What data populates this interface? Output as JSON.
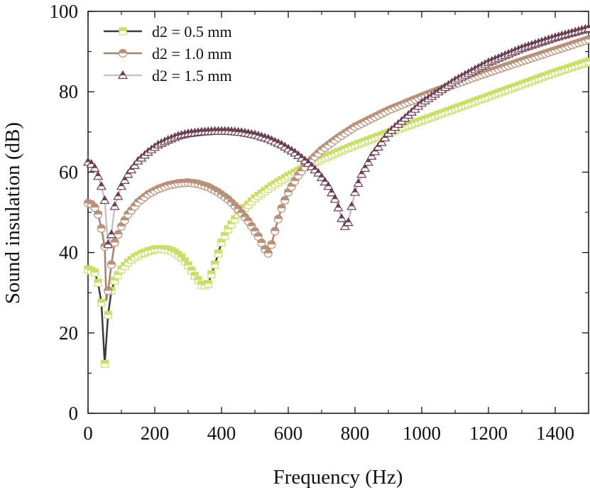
{
  "chart_data": {
    "type": "line",
    "title": "",
    "xlabel": "Frequency (Hz)",
    "ylabel": "Sound insulation (dB)",
    "xlim": [
      0,
      1500
    ],
    "ylim": [
      0,
      100
    ],
    "xticks": [
      "0",
      "200",
      "400",
      "600",
      "800",
      "1000",
      "1200",
      "1400"
    ],
    "yticks": [
      "0",
      "20",
      "40",
      "60",
      "80",
      "100"
    ],
    "grid": false,
    "legend_position": "top-left",
    "series": [
      {
        "name": "d2 = 0.5 mm",
        "line_color": "#3d3a3e",
        "marker": "square",
        "marker_color": "#c9df6a",
        "points": [
          [
            0,
            35.8
          ],
          [
            10,
            35.5
          ],
          [
            20,
            35.0
          ],
          [
            30,
            32.5
          ],
          [
            40,
            27.5
          ],
          [
            50,
            12.3
          ],
          [
            60,
            24.5
          ],
          [
            70,
            30.5
          ],
          [
            80,
            33.0
          ],
          [
            100,
            35.8
          ],
          [
            120,
            37.5
          ],
          [
            140,
            38.8
          ],
          [
            160,
            39.7
          ],
          [
            180,
            40.3
          ],
          [
            200,
            40.8
          ],
          [
            220,
            40.9
          ],
          [
            240,
            40.7
          ],
          [
            260,
            40.0
          ],
          [
            280,
            38.8
          ],
          [
            300,
            36.8
          ],
          [
            320,
            34.2
          ],
          [
            340,
            32.0
          ],
          [
            350,
            31.8
          ],
          [
            360,
            32.2
          ],
          [
            380,
            37.0
          ],
          [
            400,
            42.5
          ],
          [
            420,
            45.8
          ],
          [
            450,
            49.5
          ],
          [
            500,
            53.5
          ],
          [
            550,
            56.5
          ],
          [
            600,
            59.0
          ],
          [
            650,
            61.2
          ],
          [
            700,
            63.2
          ],
          [
            750,
            65.0
          ],
          [
            800,
            66.7
          ],
          [
            900,
            69.8
          ],
          [
            1000,
            72.8
          ],
          [
            1100,
            75.8
          ],
          [
            1200,
            78.8
          ],
          [
            1300,
            81.8
          ],
          [
            1400,
            84.8
          ],
          [
            1500,
            87.5
          ]
        ]
      },
      {
        "name": "d2 = 1.0 mm",
        "line_color": "#a8826a",
        "marker": "circle",
        "marker_color": "#b8917a",
        "points": [
          [
            0,
            52.3
          ],
          [
            10,
            52.0
          ],
          [
            20,
            51.2
          ],
          [
            30,
            49.5
          ],
          [
            40,
            46.0
          ],
          [
            50,
            41.5
          ],
          [
            55,
            28.0
          ],
          [
            60,
            30.5
          ],
          [
            70,
            37.0
          ],
          [
            80,
            42.5
          ],
          [
            100,
            46.5
          ],
          [
            120,
            49.5
          ],
          [
            150,
            52.5
          ],
          [
            180,
            54.5
          ],
          [
            210,
            55.8
          ],
          [
            240,
            56.7
          ],
          [
            270,
            57.2
          ],
          [
            300,
            57.4
          ],
          [
            330,
            57.1
          ],
          [
            360,
            56.3
          ],
          [
            390,
            55.0
          ],
          [
            420,
            53.2
          ],
          [
            450,
            50.8
          ],
          [
            480,
            47.8
          ],
          [
            510,
            44.0
          ],
          [
            530,
            40.8
          ],
          [
            540,
            39.8
          ],
          [
            550,
            42.0
          ],
          [
            565,
            47.0
          ],
          [
            580,
            51.0
          ],
          [
            600,
            55.0
          ],
          [
            630,
            59.2
          ],
          [
            660,
            62.3
          ],
          [
            700,
            65.5
          ],
          [
            750,
            68.6
          ],
          [
            800,
            71.3
          ],
          [
            900,
            75.4
          ],
          [
            1000,
            78.8
          ],
          [
            1100,
            81.9
          ],
          [
            1200,
            84.8
          ],
          [
            1300,
            87.6
          ],
          [
            1400,
            90.3
          ],
          [
            1500,
            93.0
          ]
        ]
      },
      {
        "name": "d2 = 1.5 mm",
        "line_color": "#c6c4c9",
        "marker": "triangle",
        "marker_color": "#6b3f52",
        "points": [
          [
            0,
            62.5
          ],
          [
            10,
            62.0
          ],
          [
            20,
            61.0
          ],
          [
            30,
            59.0
          ],
          [
            40,
            56.5
          ],
          [
            50,
            53.0
          ],
          [
            60,
            42.0
          ],
          [
            70,
            44.5
          ],
          [
            80,
            51.5
          ],
          [
            100,
            56.5
          ],
          [
            120,
            59.5
          ],
          [
            150,
            62.8
          ],
          [
            180,
            65.0
          ],
          [
            210,
            66.8
          ],
          [
            240,
            68.0
          ],
          [
            270,
            69.0
          ],
          [
            300,
            69.6
          ],
          [
            340,
            70.0
          ],
          [
            380,
            70.2
          ],
          [
            420,
            70.2
          ],
          [
            460,
            69.9
          ],
          [
            500,
            69.3
          ],
          [
            540,
            68.3
          ],
          [
            580,
            66.8
          ],
          [
            620,
            64.8
          ],
          [
            660,
            62.2
          ],
          [
            690,
            59.8
          ],
          [
            720,
            56.5
          ],
          [
            745,
            52.5
          ],
          [
            760,
            48.5
          ],
          [
            770,
            46.5
          ],
          [
            780,
            47.5
          ],
          [
            790,
            51.5
          ],
          [
            800,
            55.0
          ],
          [
            820,
            59.5
          ],
          [
            850,
            64.0
          ],
          [
            900,
            69.7
          ],
          [
            1000,
            77.2
          ],
          [
            1100,
            82.8
          ],
          [
            1200,
            87.3
          ],
          [
            1300,
            90.8
          ],
          [
            1400,
            93.5
          ],
          [
            1500,
            95.8
          ]
        ]
      }
    ]
  }
}
